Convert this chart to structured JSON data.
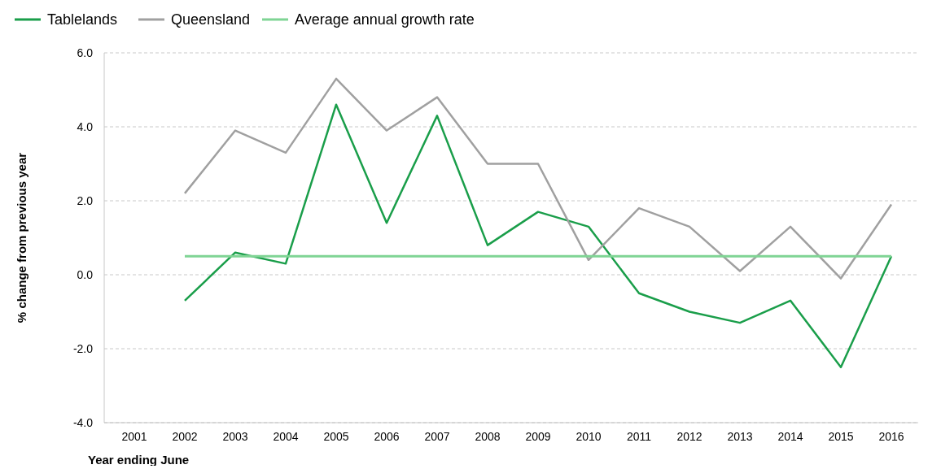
{
  "chart_data": {
    "type": "line",
    "xlabel": "Year ending June",
    "ylabel": "% change from previous year",
    "categories": [
      "2001",
      "2002",
      "2003",
      "2004",
      "2005",
      "2006",
      "2007",
      "2008",
      "2009",
      "2010",
      "2011",
      "2012",
      "2013",
      "2014",
      "2015",
      "2016"
    ],
    "series": [
      {
        "name": "Tablelands",
        "color": "#1a9e4a",
        "values": [
          null,
          -0.7,
          0.6,
          0.3,
          4.6,
          1.4,
          4.3,
          0.8,
          1.7,
          1.3,
          -0.5,
          -1.0,
          -1.3,
          -0.7,
          -2.5,
          0.5
        ]
      },
      {
        "name": "Queensland",
        "color": "#a0a0a0",
        "values": [
          null,
          2.2,
          3.9,
          3.3,
          5.3,
          3.9,
          4.8,
          3.0,
          3.0,
          0.4,
          1.8,
          1.3,
          0.1,
          1.3,
          -0.1,
          1.9
        ]
      },
      {
        "name": "Average annual growth rate",
        "color": "#7fd494",
        "values": [
          null,
          0.5,
          0.5,
          0.5,
          0.5,
          0.5,
          0.5,
          0.5,
          0.5,
          0.5,
          0.5,
          0.5,
          0.5,
          0.5,
          0.5,
          0.5
        ]
      }
    ],
    "ylim": [
      -4,
      6
    ],
    "yticks": [
      {
        "value": -4,
        "label": "-4.0"
      },
      {
        "value": -2,
        "label": "-2.0"
      },
      {
        "value": 0,
        "label": "0.0"
      },
      {
        "value": 2,
        "label": "2.0"
      },
      {
        "value": 4,
        "label": "4.0"
      },
      {
        "value": 6,
        "label": "6.0"
      }
    ],
    "grid": "y",
    "legend": "top left",
    "marker": "none",
    "line_style": "solid"
  }
}
